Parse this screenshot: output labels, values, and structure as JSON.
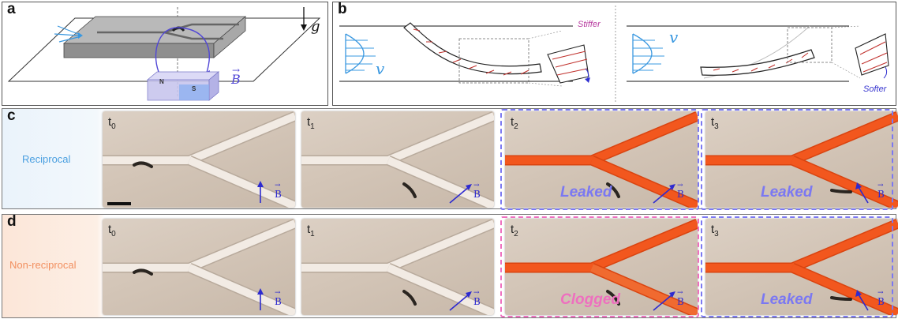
{
  "panels": {
    "a": {
      "label": "a",
      "g_label": "g",
      "B_label": "B",
      "magnet_n": "N",
      "magnet_s": "S"
    },
    "b": {
      "label": "b",
      "v_label": "v",
      "stiffer": "Stiffer",
      "softer": "Softer"
    },
    "c": {
      "label": "c",
      "row_title": "Reciprocal"
    },
    "d": {
      "label": "d",
      "row_title": "Non-reciprocal"
    }
  },
  "frames": {
    "c": [
      {
        "t": "t",
        "sub": "0",
        "status": "",
        "B": "B"
      },
      {
        "t": "t",
        "sub": "1",
        "status": "",
        "B": "B"
      },
      {
        "t": "t",
        "sub": "2",
        "status": "Leaked",
        "B": "B"
      },
      {
        "t": "t",
        "sub": "3",
        "status": "Leaked",
        "B": "B"
      }
    ],
    "d": [
      {
        "t": "t",
        "sub": "0",
        "status": "",
        "B": "B"
      },
      {
        "t": "t",
        "sub": "1",
        "status": "",
        "B": "B"
      },
      {
        "t": "t",
        "sub": "2",
        "status": "Clogged",
        "B": "B"
      },
      {
        "t": "t",
        "sub": "3",
        "status": "Leaked",
        "B": "B"
      }
    ]
  },
  "colors": {
    "leaked": "#7b78f2",
    "clogged": "#ee6fbf",
    "field_arrow": "#2d2ad0",
    "flow": "#3a98e0",
    "dye": "#f2571e"
  }
}
